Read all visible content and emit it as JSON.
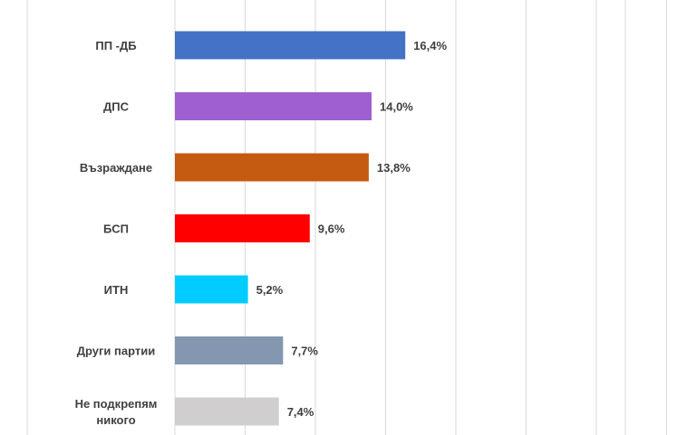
{
  "chart_data": {
    "type": "bar",
    "orientation": "horizontal",
    "categories": [
      [
        "ПП -ДБ"
      ],
      [
        "ДПС"
      ],
      [
        "Възраждане"
      ],
      [
        "БСП"
      ],
      [
        "ИТН"
      ],
      [
        "Други партии"
      ],
      [
        "Не подкрепям",
        "никого"
      ]
    ],
    "values": [
      16.4,
      14.0,
      13.8,
      9.6,
      5.2,
      7.7,
      7.4
    ],
    "value_labels": [
      "16,4%",
      "14,0%",
      "13,8%",
      "9,6%",
      "5,2%",
      "7,7%",
      "7,4%"
    ],
    "colors": [
      "#4472C4",
      "#A05FD1",
      "#C55A11",
      "#FF0000",
      "#00CCFF",
      "#8497B0",
      "#D0CECE"
    ],
    "xlim": [
      0,
      35
    ],
    "grid": true,
    "gridline_color": "#D9D9D9"
  }
}
